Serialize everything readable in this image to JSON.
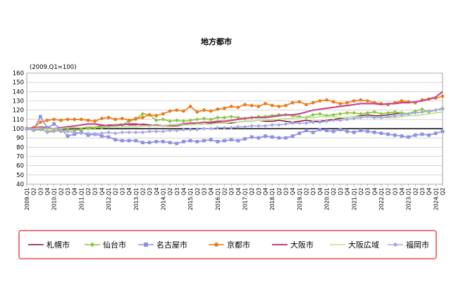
{
  "chart_data": {
    "type": "line",
    "title": "地方都市",
    "ylabel": "(2009.Q1=100)",
    "ylim": [
      40,
      160
    ],
    "yticks": [
      40,
      50,
      60,
      70,
      80,
      90,
      100,
      110,
      120,
      130,
      140,
      150,
      160
    ],
    "grid": true,
    "legend": "bottom",
    "x": [
      "2009.Q1",
      "Q2",
      "Q3",
      "Q4",
      "2010.Q1",
      "Q2",
      "Q3",
      "Q4",
      "2011.Q1",
      "Q2",
      "Q3",
      "Q4",
      "2012.Q1",
      "Q2",
      "Q3",
      "Q4",
      "2013.Q1",
      "Q2",
      "Q3",
      "Q4",
      "2014.Q1",
      "Q2",
      "Q3",
      "Q4",
      "2015.Q1",
      "Q2",
      "Q3",
      "Q4",
      "2016.Q1",
      "Q2",
      "Q3",
      "Q4",
      "2017.Q1",
      "Q2",
      "Q3",
      "Q4",
      "2018.Q1",
      "Q2",
      "Q3",
      "Q4",
      "2019.Q1",
      "Q2",
      "Q3",
      "Q4",
      "2020.Q1",
      "Q2",
      "Q3",
      "Q4",
      "2021.Q1",
      "Q2",
      "Q3",
      "Q4",
      "2022.Q1",
      "Q2",
      "Q3",
      "Q4",
      "2023.Q1",
      "Q2",
      "Q3",
      "Q4",
      "2024.Q1",
      "Q2"
    ],
    "series": [
      {
        "name": "札幌市",
        "color": "#7a1020",
        "marker": "none",
        "values": [
          100,
          101,
          102,
          101,
          100,
          99,
          100,
          101,
          100,
          101,
          102,
          103,
          104,
          104,
          105,
          104,
          104,
          105,
          104,
          103,
          103,
          103,
          103,
          104,
          104,
          105,
          105,
          106,
          107,
          106,
          106,
          107,
          108,
          108,
          109,
          108,
          108,
          109,
          108,
          107,
          108,
          109,
          108,
          108,
          109,
          110,
          111,
          112,
          113,
          114,
          115,
          114,
          114,
          115,
          116,
          117,
          116,
          117,
          118,
          119,
          120,
          121
        ]
      },
      {
        "name": "仙台市",
        "color": "#8cc63f",
        "marker": "diamond",
        "values": [
          100,
          98,
          99,
          97,
          98,
          97,
          99,
          98,
          99,
          100,
          101,
          101,
          102,
          103,
          104,
          108,
          110,
          116,
          115,
          109,
          110,
          108,
          109,
          108,
          109,
          110,
          111,
          110,
          112,
          112,
          113,
          112,
          111,
          112,
          113,
          113,
          114,
          115,
          115,
          114,
          113,
          112,
          115,
          116,
          114,
          115,
          116,
          117,
          117,
          116,
          117,
          118,
          116,
          117,
          118,
          117,
          116,
          119,
          121,
          118,
          120,
          122
        ]
      },
      {
        "name": "名古屋市",
        "color": "#8f8fe6",
        "marker": "square",
        "values": [
          100,
          99,
          113,
          101,
          105,
          100,
          92,
          94,
          96,
          93,
          94,
          92,
          91,
          88,
          87,
          87,
          87,
          85,
          85,
          86,
          86,
          85,
          84,
          86,
          87,
          86,
          87,
          88,
          86,
          87,
          88,
          87,
          89,
          91,
          90,
          92,
          91,
          90,
          90,
          92,
          95,
          98,
          96,
          99,
          98,
          97,
          99,
          97,
          96,
          98,
          97,
          96,
          95,
          94,
          93,
          92,
          91,
          93,
          94,
          93,
          95,
          97
        ]
      },
      {
        "name": "京都市",
        "color": "#ee7a17",
        "marker": "circle",
        "values": [
          100,
          101,
          107,
          109,
          110,
          109,
          110,
          110,
          110,
          109,
          108,
          111,
          112,
          110,
          111,
          109,
          111,
          112,
          115,
          114,
          116,
          119,
          120,
          119,
          124,
          118,
          120,
          119,
          121,
          122,
          124,
          123,
          126,
          125,
          124,
          127,
          125,
          124,
          125,
          128,
          129,
          126,
          128,
          130,
          131,
          129,
          127,
          128,
          130,
          131,
          130,
          128,
          127,
          126,
          128,
          130,
          129,
          128,
          131,
          132,
          133,
          135
        ]
      },
      {
        "name": "大阪市",
        "color": "#c84a8e",
        "marker": "none",
        "values": [
          100,
          101,
          101,
          100,
          100,
          101,
          102,
          103,
          104,
          105,
          105,
          104,
          103,
          104,
          104,
          105,
          105,
          104,
          103,
          104,
          103,
          104,
          104,
          105,
          106,
          106,
          107,
          107,
          108,
          108,
          109,
          110,
          111,
          112,
          112,
          112,
          113,
          114,
          115,
          115,
          116,
          118,
          120,
          121,
          122,
          123,
          124,
          125,
          126,
          127,
          127,
          127,
          126,
          127,
          127,
          128,
          128,
          129,
          130,
          132,
          134,
          140
        ]
      },
      {
        "name": "大阪広域",
        "color": "#b9e089",
        "marker": "none",
        "values": [
          100,
          100,
          101,
          100,
          100,
          100,
          101,
          101,
          101,
          102,
          102,
          102,
          102,
          102,
          102,
          102,
          102,
          103,
          103,
          103,
          103,
          104,
          104,
          104,
          104,
          105,
          105,
          105,
          106,
          106,
          107,
          107,
          108,
          108,
          109,
          109,
          110,
          110,
          111,
          111,
          112,
          112,
          112,
          113,
          113,
          113,
          112,
          112,
          113,
          113,
          113,
          113,
          112,
          112,
          112,
          113,
          114,
          114,
          115,
          116,
          117,
          118
        ]
      },
      {
        "name": "福岡市",
        "color": "#a8a8e6",
        "marker": "diamond",
        "values": [
          100,
          99,
          100,
          96,
          97,
          98,
          97,
          96,
          95,
          95,
          94,
          95,
          96,
          95,
          96,
          96,
          96,
          96,
          97,
          97,
          97,
          98,
          98,
          99,
          99,
          99,
          100,
          100,
          101,
          101,
          101,
          102,
          102,
          103,
          103,
          103,
          104,
          104,
          105,
          106,
          106,
          106,
          107,
          107,
          108,
          109,
          109,
          110,
          111,
          112,
          113,
          112,
          112,
          113,
          114,
          115,
          116,
          117,
          118,
          119,
          120,
          121
        ]
      }
    ]
  }
}
